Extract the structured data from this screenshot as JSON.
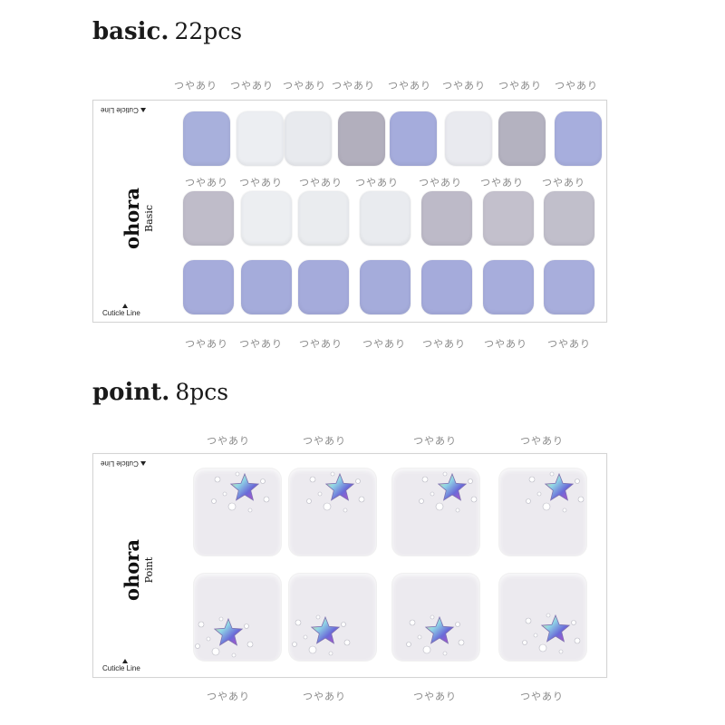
{
  "sections": [
    {
      "name": "basic.",
      "count": "22pcs"
    },
    {
      "name": "point.",
      "count": "8pcs"
    }
  ],
  "tag_label": "つやあり",
  "cuticle_label": "Cuticle Line",
  "basic_sheet": {
    "brand": "ohora",
    "sub": "Basic",
    "rows": [
      [
        "#a8b0dc",
        "#eceef2",
        "#e8eaee",
        "#b2afbd",
        "#a5acdc",
        "#e9eaef",
        "#b4b2c0",
        "#a7aedd"
      ],
      [
        "#bfbcc9",
        "#eceef1",
        "#eaecef",
        "#e9ebef",
        "#bdbac8",
        "#c3c0cc",
        "#c1bfcb"
      ],
      [
        "#a6acdb",
        "#a5acdb",
        "#a5abdb",
        "#a5acdb",
        "#a5abdb",
        "#a7addc",
        "#a8aedc"
      ]
    ]
  },
  "point_sheet": {
    "brand": "ohora",
    "sub": "Point",
    "nail_color": "#eceaef",
    "star_icon": "rhinestone-star-icon",
    "count": 8
  }
}
